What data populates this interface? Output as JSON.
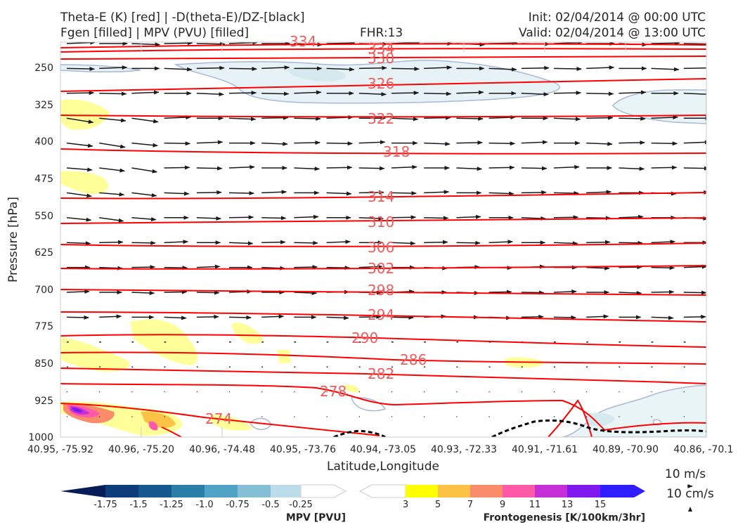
{
  "header": {
    "title_left_1": "Theta-E (K) [red] | -D(theta-E)/DZ-[black]",
    "title_left_2": "Fgen [filled] | MPV (PVU) [filled]",
    "fhr": "FHR:13",
    "init": "Init: 02/04/2014 @ 00:00 UTC",
    "valid": "Valid: 02/04/2014 @ 13:00 UTC"
  },
  "chart_data": {
    "type": "cross-section",
    "xlabel": "Latitude,Longitude",
    "ylabel": "Pressure [hPa]",
    "y_axis": "pressure (inverted)",
    "ylim": [
      1000,
      175
    ],
    "x_ticks": [
      "40.95, -75.92",
      "40.96, -75.20",
      "40.96, -74.48",
      "40.95, -73.76",
      "40.94, -73.05",
      "40.93, -72.33",
      "40.91, -71.61",
      "40.89, -70.90",
      "40.86, -70.1"
    ],
    "y_ticks": [
      250,
      325,
      400,
      475,
      550,
      625,
      700,
      775,
      850,
      925,
      1000
    ],
    "theta_e_contours": {
      "color": "#ff0000",
      "labels": [
        "334",
        "330",
        "326",
        "322",
        "318",
        "314",
        "310",
        "306",
        "302",
        "298",
        "294",
        "290",
        "286",
        "282",
        "278",
        "274"
      ]
    },
    "mpv_colorbar": {
      "title": "MPV [PVU]",
      "ticks": [
        "-1.75",
        "-1.5",
        "-1.25",
        "-1.0",
        "-0.75",
        "-0.5",
        "-0.25"
      ],
      "colors": [
        "#081d58",
        "#0d3d7a",
        "#15598f",
        "#2a7fa8",
        "#4fa3c7",
        "#85bfd6",
        "#bcdde8",
        "#ffffff"
      ]
    },
    "fgen_colorbar": {
      "title": "Frontogenesis [K/100km/3hr]",
      "ticks": [
        "3",
        "5",
        "7",
        "9",
        "11",
        "13",
        "15"
      ],
      "colors": [
        "#ffffff",
        "#ffff00",
        "#fcc245",
        "#f98c6a",
        "#ff5aaa",
        "#c42fd6",
        "#7f19ef",
        "#2d1dff"
      ]
    },
    "wind_key": {
      "horizontal": "10 m/s",
      "vertical": "10 cm/s"
    }
  }
}
